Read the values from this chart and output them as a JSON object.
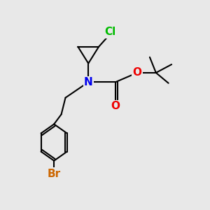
{
  "background_color": "#e8e8e8",
  "atom_colors": {
    "Cl": "#00bb00",
    "N": "#0000ee",
    "O": "#ee0000",
    "Br": "#cc6600",
    "C": "#000000"
  },
  "bond_color": "#000000",
  "bond_width": 1.5,
  "font_size_atoms": 11
}
